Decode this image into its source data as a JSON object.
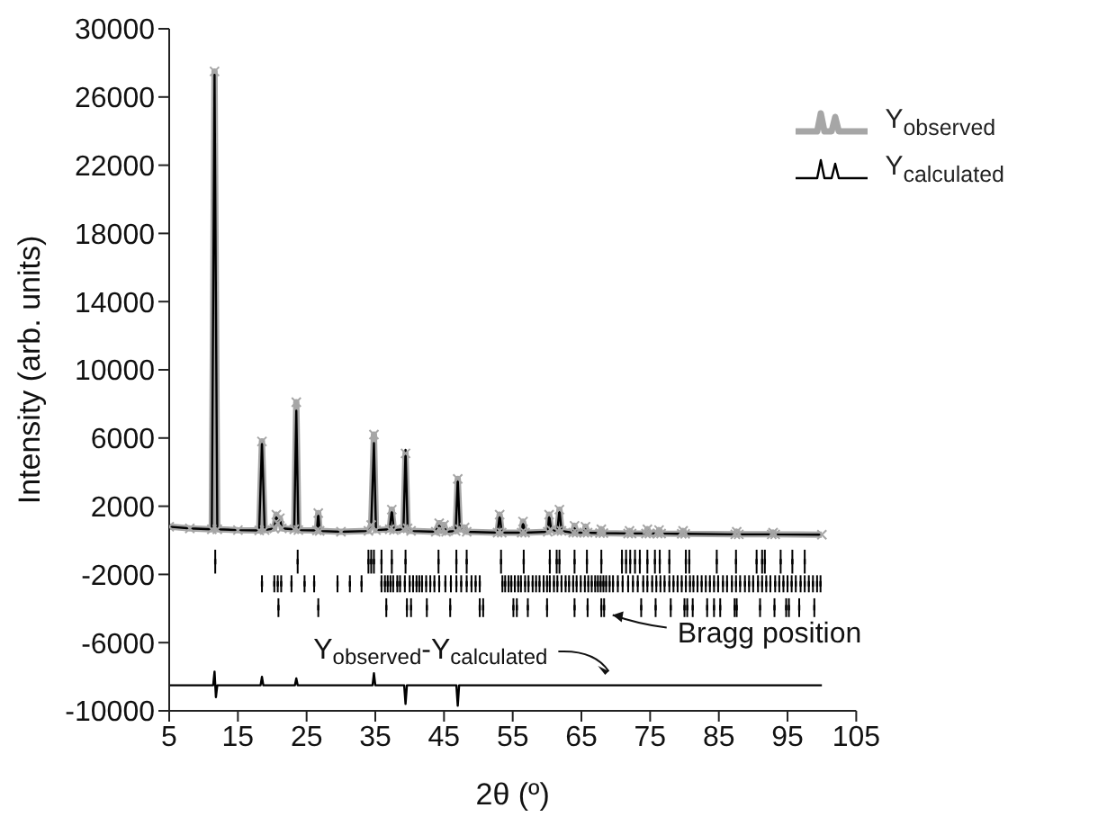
{
  "chart_data": {
    "type": "line",
    "xlabel": "2θ (º)",
    "ylabel": "Intensity (arb. units)",
    "xlim": [
      5,
      105
    ],
    "xticks": [
      5,
      15,
      25,
      35,
      45,
      55,
      65,
      75,
      85,
      95,
      105
    ],
    "ylim": [
      -10000,
      30000
    ],
    "yticks": [
      -10000,
      -6000,
      -2000,
      2000,
      6000,
      10000,
      14000,
      18000,
      22000,
      26000,
      30000
    ],
    "grid": false,
    "legend": "top right",
    "x": [
      5,
      8,
      11.2,
      11.6,
      12.0,
      15,
      18.1,
      18.5,
      18.9,
      20.3,
      20.6,
      20.8,
      21.1,
      21.4,
      23.2,
      23.5,
      23.8,
      26.5,
      26.7,
      26.9,
      30,
      34.0,
      34.4,
      34.8,
      35.1,
      37.1,
      37.4,
      37.7,
      39.1,
      39.4,
      39.7,
      40.2,
      43.8,
      44.3,
      44.6,
      45.0,
      45.3,
      46.7,
      47.0,
      47.3,
      48.0,
      48.3,
      52.8,
      53.1,
      53.4,
      56.3,
      56.5,
      56.8,
      60.1,
      60.3,
      60.6,
      61.5,
      61.8,
      62.1,
      63.8,
      64.0,
      64.3,
      65.4,
      65.6,
      65.9,
      67.7,
      67.9,
      68.2,
      71.8,
      72.0,
      72.3,
      74.4,
      74.6,
      74.9,
      76.1,
      76.3,
      76.6,
      79.6,
      79.8,
      80.1,
      87.4,
      87.6,
      87.9,
      92.7,
      92.9,
      93.2,
      100
    ],
    "series": [
      {
        "name": "Y$_{observed}$",
        "color": "#a6a6a6",
        "marker": "cross",
        "values": [
          800,
          700,
          650,
          27500,
          650,
          600,
          580,
          5800,
          600,
          700,
          1500,
          1000,
          1300,
          700,
          650,
          8100,
          600,
          580,
          1600,
          550,
          500,
          550,
          900,
          6200,
          600,
          650,
          1800,
          600,
          650,
          5100,
          700,
          550,
          500,
          1000,
          550,
          900,
          500,
          550,
          3600,
          650,
          750,
          500,
          450,
          1500,
          450,
          450,
          1100,
          450,
          500,
          1500,
          600,
          550,
          1800,
          550,
          450,
          850,
          450,
          450,
          800,
          450,
          420,
          650,
          420,
          400,
          550,
          400,
          400,
          650,
          400,
          400,
          600,
          400,
          380,
          550,
          380,
          350,
          500,
          350,
          350,
          450,
          350,
          330
        ]
      },
      {
        "name": "Y$_{calculated}$",
        "color": "#000000",
        "values": [
          800,
          700,
          650,
          27300,
          650,
          600,
          580,
          5800,
          600,
          700,
          1500,
          1000,
          1300,
          700,
          650,
          7600,
          600,
          580,
          1600,
          550,
          500,
          550,
          900,
          5700,
          600,
          650,
          1800,
          600,
          650,
          5300,
          700,
          550,
          500,
          1000,
          550,
          900,
          500,
          550,
          3600,
          650,
          750,
          500,
          450,
          1500,
          450,
          450,
          1100,
          450,
          500,
          1500,
          600,
          550,
          1800,
          550,
          450,
          850,
          450,
          450,
          800,
          450,
          420,
          650,
          420,
          400,
          550,
          400,
          400,
          650,
          400,
          400,
          600,
          400,
          380,
          550,
          380,
          350,
          500,
          350,
          350,
          450,
          350,
          330
        ]
      },
      {
        "color": "#000000",
        "x": [
          5,
          11.4,
          11.6,
          11.8,
          12.0,
          18.3,
          18.5,
          18.7,
          23.3,
          23.5,
          23.7,
          34.6,
          34.8,
          35.0,
          39.2,
          39.4,
          39.6,
          46.8,
          47.0,
          47.2,
          100
        ],
        "values": [
          -8500,
          -8500,
          -7700,
          -9200,
          -8500,
          -8500,
          -8000,
          -8500,
          -8500,
          -8100,
          -8500,
          -8500,
          -7800,
          -8500,
          -8500,
          -9600,
          -8500,
          -8500,
          -9700,
          -8500,
          -8500
        ]
      },
      {
        "type": "scatter",
        "color": "#000000",
        "marker": "square",
        "x": [
          11.7,
          23.7,
          34.0,
          34.4,
          34.8,
          35.9,
          37.4,
          39.4,
          44.2,
          46.8,
          48.3,
          53.3,
          56.6,
          60.4,
          61.4,
          61.8,
          64.0,
          65.8,
          67.9,
          70.9,
          71.5,
          72.1,
          72.8,
          73.5,
          74.6,
          75.7,
          76.4,
          77.8,
          80.2,
          80.7,
          84.7,
          87.5,
          90.5,
          91.3,
          91.7,
          94.0,
          95.7,
          97.5
        ],
        "values": [
          -1250,
          -1250,
          -1250,
          -1250,
          -1250,
          -1250,
          -1250,
          -1250,
          -1250,
          -1250,
          -1250,
          -1250,
          -1250,
          -1250,
          -1250,
          -1250,
          -1250,
          -1250,
          -1250,
          -1250,
          -1250,
          -1250,
          -1250,
          -1250,
          -1250,
          -1250,
          -1250,
          -1250,
          -1250,
          -1250,
          -1250,
          -1250,
          -1250,
          -1250,
          -1250,
          -1250,
          -1250,
          -1250
        ],
        "errors": [
          700,
          700,
          700,
          700,
          700,
          700,
          700,
          700,
          700,
          700,
          700,
          700,
          700,
          700,
          700,
          700,
          700,
          700,
          700,
          700,
          700,
          700,
          700,
          700,
          700,
          700,
          700,
          700,
          700,
          700,
          700,
          700,
          700,
          700,
          700,
          700,
          700,
          700
        ]
      },
      {
        "type": "scatter",
        "color": "#000000",
        "marker": "square",
        "x": [
          18.5,
          20.3,
          20.8,
          21.3,
          22.8,
          24.7,
          26.1,
          29.5,
          31.3,
          33.0,
          35.9,
          36.4,
          36.8,
          37.2,
          37.6,
          38.2,
          38.6,
          39.3,
          40.0,
          40.5,
          41.0,
          41.4,
          41.8,
          42.4,
          43.0,
          43.6,
          44.3,
          45.2,
          46.0,
          46.8,
          47.5,
          48.3,
          49.0,
          49.6,
          50.2,
          53.5,
          53.9,
          54.4,
          54.8,
          55.3,
          55.8,
          56.2,
          56.8,
          57.3,
          57.9,
          58.4,
          58.9,
          59.5,
          60.0,
          60.4,
          61.0,
          61.5,
          62.1,
          62.7,
          63.2,
          63.8,
          64.3,
          64.9,
          65.5,
          66.0,
          66.5,
          67.0,
          67.4,
          67.8,
          68.2,
          68.6,
          69.1,
          69.6,
          70.3,
          71.0,
          71.8,
          72.5,
          73.2,
          74.0,
          74.6,
          75.3,
          75.9,
          76.5,
          77.1,
          77.8,
          78.4,
          79.0,
          79.6,
          80.2,
          80.8,
          81.3,
          81.9,
          82.5,
          83.1,
          83.7,
          84.3,
          84.9,
          85.6,
          86.2,
          86.9,
          87.5,
          88.1,
          88.8,
          89.4,
          90.0,
          90.7,
          91.3,
          91.9,
          92.5,
          93.2,
          93.8,
          94.4,
          95.0,
          95.6,
          96.2,
          96.9,
          97.5,
          98.1,
          98.7,
          99.3,
          99.8
        ],
        "values": [
          -2550,
          -2550,
          -2550,
          -2550,
          -2550,
          -2550,
          -2550,
          -2550,
          -2550,
          -2550,
          -2550,
          -2550,
          -2550,
          -2550,
          -2550,
          -2550,
          -2550,
          -2550,
          -2550,
          -2550,
          -2550,
          -2550,
          -2550,
          -2550,
          -2550,
          -2550,
          -2550,
          -2550,
          -2550,
          -2550,
          -2550,
          -2550,
          -2550,
          -2550,
          -2550,
          -2550,
          -2550,
          -2550,
          -2550,
          -2550,
          -2550,
          -2550,
          -2550,
          -2550,
          -2550,
          -2550,
          -2550,
          -2550,
          -2550,
          -2550,
          -2550,
          -2550,
          -2550,
          -2550,
          -2550,
          -2550,
          -2550,
          -2550,
          -2550,
          -2550,
          -2550,
          -2550,
          -2550,
          -2550,
          -2550,
          -2550,
          -2550,
          -2550,
          -2550,
          -2550,
          -2550,
          -2550,
          -2550,
          -2550,
          -2550,
          -2550,
          -2550,
          -2550,
          -2550,
          -2550,
          -2550,
          -2550,
          -2550,
          -2550,
          -2550,
          -2550,
          -2550,
          -2550,
          -2550,
          -2550,
          -2550,
          -2550,
          -2550,
          -2550,
          -2550,
          -2550,
          -2550,
          -2550,
          -2550,
          -2550,
          -2550,
          -2550,
          -2550,
          -2550,
          -2550,
          -2550,
          -2550,
          -2550,
          -2550,
          -2550,
          -2550,
          -2550,
          -2550,
          -2550,
          -2550,
          -2550
        ],
        "errors": [
          500,
          500,
          500,
          500,
          500,
          500,
          500,
          500,
          500,
          500,
          500,
          500,
          500,
          500,
          500,
          500,
          500,
          500,
          500,
          500,
          500,
          500,
          500,
          500,
          500,
          500,
          500,
          500,
          500,
          500,
          500,
          500,
          500,
          500,
          500,
          500,
          500,
          500,
          500,
          500,
          500,
          500,
          500,
          500,
          500,
          500,
          500,
          500,
          500,
          500,
          500,
          500,
          500,
          500,
          500,
          500,
          500,
          500,
          500,
          500,
          500,
          500,
          500,
          500,
          500,
          500,
          500,
          500,
          500,
          500,
          500,
          500,
          500,
          500,
          500,
          500,
          500,
          500,
          500,
          500,
          500,
          500,
          500,
          500,
          500,
          500,
          500,
          500,
          500,
          500,
          500,
          500,
          500,
          500,
          500,
          500,
          500,
          500,
          500,
          500,
          500,
          500,
          500,
          500,
          500,
          500,
          500,
          500,
          500,
          500,
          500,
          500,
          500,
          500,
          500,
          500
        ]
      },
      {
        "type": "scatter",
        "color": "#000000",
        "marker": "square",
        "x": [
          20.9,
          26.7,
          36.6,
          39.6,
          40.2,
          42.5,
          45.9,
          50.2,
          50.7,
          55.1,
          55.6,
          57.2,
          60.0,
          64.0,
          65.9,
          67.9,
          68.3,
          73.7,
          75.8,
          78.0,
          80.0,
          80.4,
          81.2,
          83.3,
          84.3,
          85.2,
          87.3,
          87.6,
          91.0,
          93.1,
          94.8,
          95.2,
          96.7,
          98.9
        ],
        "values": [
          -3950,
          -3950,
          -3950,
          -3950,
          -3950,
          -3950,
          -3950,
          -3950,
          -3950,
          -3950,
          -3950,
          -3950,
          -3950,
          -3950,
          -3950,
          -3950,
          -3950,
          -3950,
          -3950,
          -3950,
          -3950,
          -3950,
          -3950,
          -3950,
          -3950,
          -3950,
          -3950,
          -3950,
          -3950,
          -3950,
          -3950,
          -3950,
          -3950,
          -3950
        ],
        "errors": [
          550,
          550,
          550,
          550,
          550,
          550,
          550,
          550,
          550,
          550,
          550,
          550,
          550,
          550,
          550,
          550,
          550,
          550,
          550,
          550,
          550,
          550,
          550,
          550,
          550,
          550,
          550,
          550,
          550,
          550,
          550,
          550,
          550,
          550
        ]
      }
    ],
    "annotations": [
      {
        "text": "Bragg position",
        "x": 68.5,
        "y": -4700
      },
      {
        "text": "Y$_{observed}$-Y$_{calculated}$",
        "x": 69.5,
        "y": -8000
      }
    ]
  }
}
